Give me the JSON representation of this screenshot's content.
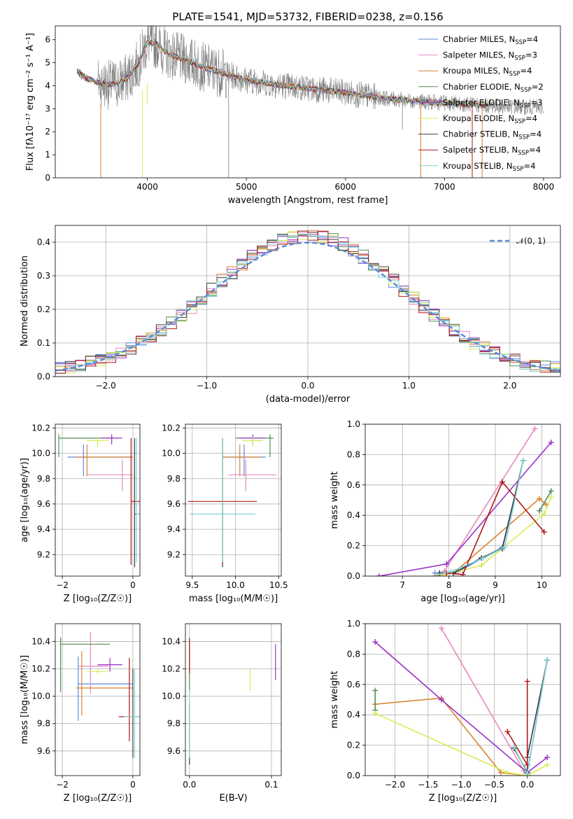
{
  "title": "PLATE=1541, MJD=53732, FIBERID=0238, z=0.156",
  "chart_data": [
    {
      "id": "spectrum",
      "type": "line",
      "xlabel": "wavelength [Angstrom, rest frame]",
      "ylabel": "Flux [fλ10⁻¹⁷ erg cm⁻² s⁻¹ A⁻¹]",
      "xlim": [
        3070,
        8170
      ],
      "ylim": [
        0,
        6.6
      ],
      "xticks": [
        4000,
        5000,
        6000,
        7000,
        8000
      ],
      "yticks": [
        0,
        1,
        2,
        3,
        4,
        5,
        6
      ],
      "data_color": "#808080",
      "data_x_range": [
        3290,
        8000
      ],
      "models": [
        {
          "name": "Chabrier MILES, NSSP=4",
          "color": "#5b8bdc"
        },
        {
          "name": "Salpeter MILES, NSSP=3",
          "color": "#e58ac1"
        },
        {
          "name": "Kroupa MILES, NSSP=4",
          "color": "#d98233"
        },
        {
          "name": "Chabrier ELODIE, NSSP=2",
          "color": "#4f8f55"
        },
        {
          "name": "Salpeter ELODIE, NSSP=3",
          "color": "#9b30c5"
        },
        {
          "name": "Kroupa ELODIE, NSSP=4",
          "color": "#d8ec55"
        },
        {
          "name": "Chabrier STELIB, NSSP=4",
          "color": "#3d3d3d"
        },
        {
          "name": "Salpeter STELIB, NSSP=4",
          "color": "#b01818"
        },
        {
          "name": "Kroupa STELIB, NSSP=4",
          "color": "#86d4d4"
        }
      ],
      "continuum": [
        [
          3290,
          4.6
        ],
        [
          3400,
          4.3
        ],
        [
          3500,
          4.15
        ],
        [
          3600,
          4.05
        ],
        [
          3700,
          4.1
        ],
        [
          3800,
          4.35
        ],
        [
          3900,
          4.9
        ],
        [
          4000,
          5.9
        ],
        [
          4100,
          5.8
        ],
        [
          4200,
          5.4
        ],
        [
          4400,
          5.1
        ],
        [
          4600,
          4.75
        ],
        [
          4800,
          4.5
        ],
        [
          5000,
          4.25
        ],
        [
          5300,
          4.05
        ],
        [
          5600,
          3.9
        ],
        [
          6000,
          3.7
        ],
        [
          6400,
          3.45
        ],
        [
          6800,
          3.3
        ],
        [
          7200,
          3.2
        ],
        [
          7600,
          3.1
        ],
        [
          8000,
          3.05
        ]
      ]
    },
    {
      "id": "residuals",
      "type": "step",
      "xlabel": "(data-model)/error",
      "ylabel": "Normed distribution",
      "xlim": [
        -2.5,
        2.5
      ],
      "ylim": [
        0,
        0.45
      ],
      "xticks": [
        -2,
        -1,
        0,
        1,
        2
      ],
      "yticks": [
        0.0,
        0.1,
        0.2,
        0.3,
        0.4
      ],
      "legend": "𝒩(0, 1)",
      "normal_color": "#5b8bdc"
    },
    {
      "id": "age-vs-Z",
      "type": "errorbar",
      "xlabel": "Z [log₁₀(Z/Z☉)]",
      "ylabel": "age  [log₁₀(age/yr)]",
      "xlim": [
        -2.2,
        0.2
      ],
      "ylim": [
        9.03,
        10.23
      ],
      "xticks": [
        -2,
        0
      ],
      "yticks": [
        9.2,
        9.4,
        9.6,
        9.8,
        10.0,
        10.2
      ],
      "points": [
        {
          "color": "#5b8bdc",
          "x": -1.4,
          "xerr": [
            0.45,
            1.4
          ],
          "y": 9.97,
          "yerr": [
            0.15,
            0.1
          ]
        },
        {
          "color": "#e58ac1",
          "x": -0.3,
          "xerr": [
            1.0,
            0.3
          ],
          "y": 9.83,
          "yerr": [
            0.13,
            0.12
          ]
        },
        {
          "color": "#d98233",
          "x": -1.3,
          "xerr": [
            0.3,
            1.3
          ],
          "y": 9.97,
          "yerr": [
            0.15,
            0.1
          ]
        },
        {
          "color": "#4f8f55",
          "x": -2.1,
          "xerr": [
            0.0,
            1.7
          ],
          "y": 10.12,
          "yerr": [
            0.15,
            0.03
          ]
        },
        {
          "color": "#9b30c5",
          "x": -0.6,
          "xerr": [
            0.3,
            0.3
          ],
          "y": 10.12,
          "yerr": [
            0.05,
            0.03
          ]
        },
        {
          "color": "#d8ec55",
          "x": -1.0,
          "xerr": [
            0.3,
            0.3
          ],
          "y": 10.1,
          "yerr": [
            0.05,
            0.03
          ]
        },
        {
          "color": "#3d3d3d",
          "x": 0.05,
          "xerr": [
            0.0,
            0.3
          ],
          "y": 9.52,
          "yerr": [
            0.42,
            0.6
          ]
        },
        {
          "color": "#b01818",
          "x": -0.05,
          "xerr": [
            0.0,
            0.6
          ],
          "y": 9.62,
          "yerr": [
            0.5,
            0.5
          ]
        },
        {
          "color": "#86d4d4",
          "x": 0.1,
          "xerr": [
            0.0,
            0.6
          ],
          "y": 9.52,
          "yerr": [
            0.38,
            0.6
          ]
        }
      ]
    },
    {
      "id": "age-vs-mass",
      "type": "errorbar",
      "xlabel": "mass [log₁₀(M/M☉)]",
      "ylabel": "",
      "xlim": [
        9.42,
        10.53
      ],
      "ylim": [
        9.03,
        10.23
      ],
      "xticks": [
        9.5,
        10.0,
        10.5
      ],
      "yticks": [
        9.2,
        9.4,
        9.6,
        9.8,
        10.0,
        10.2
      ],
      "points": [
        {
          "color": "#5b8bdc",
          "x": 10.1,
          "xerr": [
            0.25,
            0.25
          ],
          "y": 9.97,
          "yerr": [
            0.15,
            0.1
          ]
        },
        {
          "color": "#e58ac1",
          "x": 10.12,
          "xerr": [
            0.2,
            0.35
          ],
          "y": 9.83,
          "yerr": [
            0.13,
            0.12
          ]
        },
        {
          "color": "#d98233",
          "x": 10.05,
          "xerr": [
            0.2,
            0.25
          ],
          "y": 9.97,
          "yerr": [
            0.15,
            0.1
          ]
        },
        {
          "color": "#4f8f55",
          "x": 10.4,
          "xerr": [
            0.4,
            0.04
          ],
          "y": 10.12,
          "yerr": [
            0.15,
            0.03
          ]
        },
        {
          "color": "#9b30c5",
          "x": 10.2,
          "xerr": [
            0.15,
            0.15
          ],
          "y": 10.12,
          "yerr": [
            0.05,
            0.03
          ]
        },
        {
          "color": "#d8ec55",
          "x": 10.2,
          "xerr": [
            0.12,
            0.12
          ],
          "y": 10.1,
          "yerr": [
            0.05,
            0.03
          ]
        },
        {
          "color": "#3d3d3d",
          "x": 9.85,
          "xerr": [
            0.02,
            0.02
          ],
          "y": 9.52,
          "yerr": [
            0.42,
            0.6
          ]
        },
        {
          "color": "#b01818",
          "x": 9.85,
          "xerr": [
            0.4,
            0.4
          ],
          "y": 9.62,
          "yerr": [
            0.5,
            0.5
          ]
        },
        {
          "color": "#86d4d4",
          "x": 9.85,
          "xerr": [
            0.38,
            0.38
          ],
          "y": 9.52,
          "yerr": [
            0.38,
            0.6
          ]
        }
      ]
    },
    {
      "id": "mass-weight-vs-age",
      "type": "line",
      "xlabel": "age  [log₁₀(age/yr)]",
      "ylabel": "mass weight",
      "xlim": [
        6.2,
        10.4
      ],
      "ylim": [
        0,
        1.0
      ],
      "xticks": [
        7,
        8,
        9,
        10
      ],
      "yticks": [
        0.0,
        0.2,
        0.4,
        0.6,
        0.8,
        1.0
      ],
      "series": [
        {
          "color": "#5b8bdc",
          "x": [
            7.7,
            8.2,
            9.15,
            9.6
          ],
          "y": [
            0.02,
            0.03,
            0.19,
            0.76
          ]
        },
        {
          "color": "#e58ac1",
          "x": [
            7.9,
            9.85
          ],
          "y": [
            0.03,
            0.97
          ]
        },
        {
          "color": "#d98233",
          "x": [
            7.7,
            8.1,
            9.95,
            10.1
          ],
          "y": [
            0.0,
            0.02,
            0.51,
            0.47
          ]
        },
        {
          "color": "#4f8f55",
          "x": [
            9.95,
            10.2
          ],
          "y": [
            0.43,
            0.56
          ]
        },
        {
          "color": "#9b30c5",
          "x": [
            6.5,
            7.95,
            10.2
          ],
          "y": [
            0.0,
            0.08,
            0.88
          ]
        },
        {
          "color": "#d8ec55",
          "x": [
            7.8,
            8.7,
            10.05,
            10.2
          ],
          "y": [
            0.0,
            0.07,
            0.41,
            0.52
          ]
        },
        {
          "color": "#3d3d3d",
          "x": [
            7.8,
            8.1,
            8.7,
            9.15,
            9.6
          ],
          "y": [
            0.02,
            0.02,
            0.12,
            0.18,
            0.76
          ]
        },
        {
          "color": "#b01818",
          "x": [
            7.95,
            8.3,
            9.15,
            10.05
          ],
          "y": [
            0.02,
            0.01,
            0.62,
            0.29
          ]
        },
        {
          "color": "#86d4d4",
          "x": [
            7.75,
            8.05,
            8.75,
            9.2,
            9.6
          ],
          "y": [
            0.01,
            0.03,
            0.12,
            0.19,
            0.76
          ]
        }
      ]
    },
    {
      "id": "mass-vs-Z",
      "type": "errorbar",
      "xlabel": "Z [log₁₀(Z/Z☉)]",
      "ylabel": "mass [log₁₀(M/M☉)]",
      "xlim": [
        -2.2,
        0.2
      ],
      "ylim": [
        9.42,
        10.53
      ],
      "xticks": [
        -2,
        0
      ],
      "yticks": [
        9.6,
        9.8,
        10.0,
        10.2,
        10.4
      ],
      "points": [
        {
          "color": "#5b8bdc",
          "x": -1.55,
          "xerr": [
            0.0,
            1.55
          ],
          "y": 10.09,
          "yerr": [
            0.27,
            0.2
          ]
        },
        {
          "color": "#e58ac1",
          "x": -1.2,
          "xerr": [
            0.35,
            0.5
          ],
          "y": 10.22,
          "yerr": [
            0.2,
            0.25
          ]
        },
        {
          "color": "#d98233",
          "x": -1.45,
          "xerr": [
            0.15,
            1.45
          ],
          "y": 10.06,
          "yerr": [
            0.2,
            0.27
          ]
        },
        {
          "color": "#4f8f55",
          "x": -2.05,
          "xerr": [
            0.0,
            1.4
          ],
          "y": 10.38,
          "yerr": [
            0.35,
            0.05
          ]
        },
        {
          "color": "#9b30c5",
          "x": -0.65,
          "xerr": [
            0.35,
            0.35
          ],
          "y": 10.23,
          "yerr": [
            0.05,
            0.05
          ]
        },
        {
          "color": "#d8ec55",
          "x": -1.0,
          "xerr": [
            0.3,
            0.3
          ],
          "y": 10.18,
          "yerr": [
            0.02,
            0.02
          ]
        },
        {
          "color": "#3d3d3d",
          "x": 0.0,
          "xerr": [
            0.35,
            0.3
          ],
          "y": 9.85,
          "yerr": [
            0.3,
            0.35
          ]
        },
        {
          "color": "#b01818",
          "x": -0.1,
          "xerr": [
            0.3,
            0.4
          ],
          "y": 9.85,
          "yerr": [
            0.18,
            0.43
          ]
        },
        {
          "color": "#86d4d4",
          "x": 0.05,
          "xerr": [
            0.3,
            0.3
          ],
          "y": 9.85,
          "yerr": [
            0.3,
            0.35
          ]
        }
      ]
    },
    {
      "id": "mass-vs-EBV",
      "type": "errorbar",
      "xlabel": "E(B-V)",
      "ylabel": "",
      "xlim": [
        -0.005,
        0.112
      ],
      "ylim": [
        9.42,
        10.53
      ],
      "xticks": [
        0.0,
        0.1
      ],
      "yticks": [
        9.6,
        9.8,
        10.0,
        10.2,
        10.4
      ],
      "points": [
        {
          "color": "#d8ec55",
          "x": 0.074,
          "xerr": [
            0,
            0
          ],
          "y": 10.17,
          "yerr": [
            0.13,
            0.03
          ]
        },
        {
          "color": "#9b30c5",
          "x": 0.105,
          "xerr": [
            0,
            0
          ],
          "y": 10.25,
          "yerr": [
            0.13,
            0.13
          ]
        },
        {
          "color": "#4f8f55",
          "x": 0.0,
          "xerr": [
            0,
            0
          ],
          "y": 10.38,
          "yerr": [
            0.35,
            0.05
          ]
        },
        {
          "color": "#b01818",
          "x": 0.0,
          "xerr": [
            0,
            0
          ],
          "y": 10.3,
          "yerr": [
            0.13,
            0.12
          ]
        },
        {
          "color": "#3d3d3d",
          "x": 0.0,
          "xerr": [
            0,
            0
          ],
          "y": 9.85,
          "yerr": [
            0.35,
            0.1
          ]
        },
        {
          "color": "#86d4d4",
          "x": 0.0,
          "xerr": [
            0,
            0
          ],
          "y": 9.85,
          "yerr": [
            0.3,
            0.2
          ]
        }
      ]
    },
    {
      "id": "mass-weight-vs-Z",
      "type": "line",
      "xlabel": "Z [log₁₀(Z/Z☉)]",
      "ylabel": "mass weight",
      "xlim": [
        -2.45,
        0.5
      ],
      "ylim": [
        0,
        1.0
      ],
      "xticks": [
        -2.0,
        -1.5,
        -1.0,
        -0.5,
        0.0
      ],
      "yticks": [
        0.0,
        0.2,
        0.4,
        0.6,
        0.8,
        1.0
      ],
      "series": [
        {
          "color": "#5b8bdc",
          "x": [
            -0.2,
            0.0,
            0.3
          ],
          "y": [
            0.18,
            0.02,
            0.76
          ]
        },
        {
          "color": "#e58ac1",
          "x": [
            -1.3,
            -0.05
          ],
          "y": [
            0.97,
            0.03
          ]
        },
        {
          "color": "#d98233",
          "x": [
            -2.3,
            -1.3,
            -0.4,
            0.0
          ],
          "y": [
            0.47,
            0.51,
            0.02,
            0.0
          ]
        },
        {
          "color": "#4f8f55",
          "x": [
            -2.3,
            -2.3
          ],
          "y": [
            0.43,
            0.56
          ]
        },
        {
          "color": "#9b30c5",
          "x": [
            -2.3,
            -1.3,
            0.0,
            0.3
          ],
          "y": [
            0.88,
            0.5,
            0.02,
            0.12
          ]
        },
        {
          "color": "#d8ec55",
          "x": [
            -2.3,
            -0.3,
            0.0,
            0.3
          ],
          "y": [
            0.41,
            0.02,
            0.0,
            0.07
          ]
        },
        {
          "color": "#3d3d3d",
          "x": [
            -0.2,
            0.0,
            0.0,
            0.3
          ],
          "y": [
            0.18,
            0.02,
            0.12,
            0.76
          ]
        },
        {
          "color": "#b01818",
          "x": [
            -0.3,
            0.0,
            0.0
          ],
          "y": [
            0.29,
            0.07,
            0.62
          ]
        },
        {
          "color": "#86d4d4",
          "x": [
            -0.2,
            0.0,
            0.3
          ],
          "y": [
            0.19,
            0.01,
            0.76
          ]
        }
      ]
    }
  ]
}
